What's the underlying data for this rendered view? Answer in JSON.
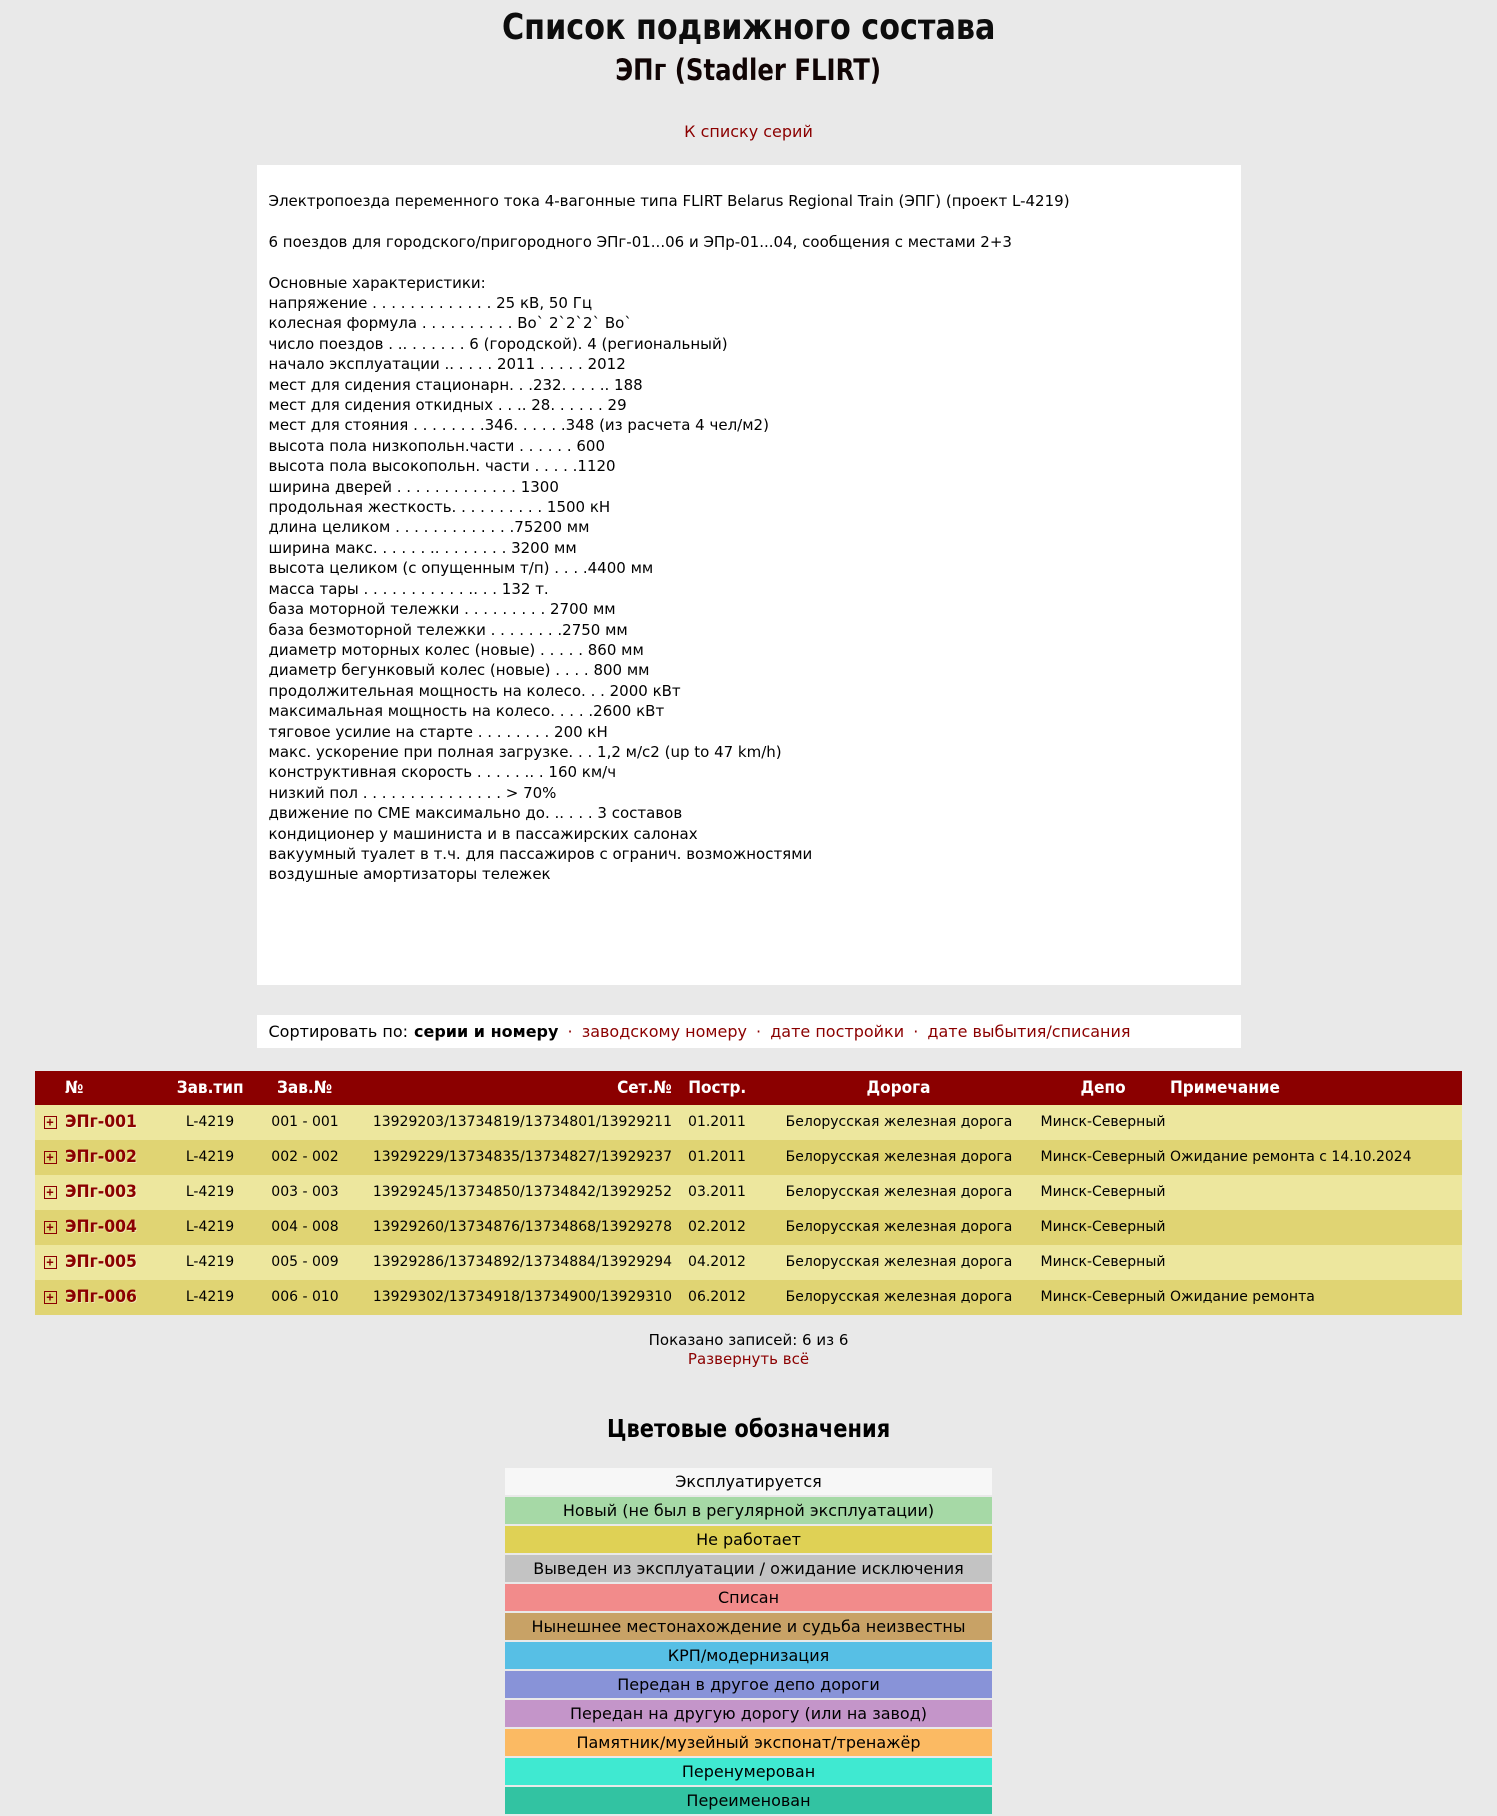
{
  "header": {
    "title": "Список подвижного состава",
    "subtitle": "ЭПг (Stadler FLIRT)",
    "back_link": "К списку серий"
  },
  "description": {
    "paragraph1": "Электропоезда переменного тока 4-вагонные типа FLIRT Belarus Regional Train (ЭПГ) (проект L-4219)",
    "paragraph2": "6 поездов для городского/пригородного ЭПг-01...06 и ЭПр-01...04, сообщения с местами 2+3",
    "spec_lines": [
      "Основные характеристики:",
      "напряжение . . . . . . . . . . . . . 25 кВ, 50 Гц",
      "колесная формула . . . . . . . . . . Во` 2`2`2` Во`",
      "число поездов . .. . . . . . . 6 (городской). 4 (региональный)",
      "начало эксплуатации .. . . . . 2011 . . . . . 2012",
      "мест для сидения стационарн. . .232. . . . .. 188",
      "мест для сидения откидных . . .. 28. . . . . . 29",
      "мест для стояния . . . . . . . .346. . . . . .348 (из расчета 4 чел/м2)",
      "высота пола низкопольн.части . . . . . . 600",
      "высота пола высокопольн. части . . . . .1120",
      "ширина дверей . . . . . . . . . . . . . 1300",
      "продольная жесткость. . . . . . . . . . 1500 кН",
      "длина целиком . . . . . . . . . . . . .75200 мм",
      "ширина макс. . . . . . .. . . . . . . . 3200 мм",
      "высота целиком (с опущенным т/п) . . . .4400 мм",
      "масса тары . . . . . . . . . . . .. . . 132 т.",
      "база моторной тележки . . . . . . . . . 2700 мм",
      "база безмоторной тележки . . . . . . . .2750 мм",
      "диаметр моторных колес (новые) . . . . . 860 мм",
      "диаметр бегунковый колес (новые) . . . . 800 мм",
      "продолжительная мощность на колесо. . . 2000 кВт",
      "максимальная мощность на колесо. . . . .2600 кВт",
      "тяговое усилие на старте . . . . . . . . 200 кН",
      "макс. ускорение при полная загрузке. . . 1,2 м/с2 (up to 47 km/h)",
      "конструктивная скорость . . . . . .. . 160 км/ч",
      "низкий пол . . . . . . . . . . . . . . . > 70%",
      "движение по СМЕ максимально до. .. . . . 3 составов",
      "кондиционер у машиниста и в пассажирских салонах",
      "вакуумный туалет в т.ч. для пассажиров с огранич. возможностями",
      "воздушные амортизаторы тележек"
    ]
  },
  "sort": {
    "label": "Сортировать по:",
    "active": "серии и номеру",
    "separator": "·",
    "options": [
      "заводскому номеру",
      "дате постройки",
      "дате выбытия/списания"
    ]
  },
  "table": {
    "columns": [
      "№",
      "Зав.тип",
      "Зав.№",
      "Сет.№",
      "Постр.",
      "Дорога",
      "Депо",
      "Примечание"
    ],
    "expand_icon": "+",
    "rows": [
      {
        "number": "ЭПг-001",
        "factory_type": "L-4219",
        "factory_number": "001 - 001",
        "network_number": "13929203/13734819/13734801/13929211",
        "built": "01.2011",
        "road": "Белорусская железная дорога",
        "depot": "Минск-Северный",
        "note": ""
      },
      {
        "number": "ЭПг-002",
        "factory_type": "L-4219",
        "factory_number": "002 - 002",
        "network_number": "13929229/13734835/13734827/13929237",
        "built": "01.2011",
        "road": "Белорусская железная дорога",
        "depot": "Минск-Северный",
        "note": "Ожидание ремонта с 14.10.2024"
      },
      {
        "number": "ЭПг-003",
        "factory_type": "L-4219",
        "factory_number": "003 - 003",
        "network_number": "13929245/13734850/13734842/13929252",
        "built": "03.2011",
        "road": "Белорусская железная дорога",
        "depot": "Минск-Северный",
        "note": ""
      },
      {
        "number": "ЭПг-004",
        "factory_type": "L-4219",
        "factory_number": "004 - 008",
        "network_number": "13929260/13734876/13734868/13929278",
        "built": "02.2012",
        "road": "Белорусская железная дорога",
        "depot": "Минск-Северный",
        "note": ""
      },
      {
        "number": "ЭПг-005",
        "factory_type": "L-4219",
        "factory_number": "005 - 009",
        "network_number": "13929286/13734892/13734884/13929294",
        "built": "04.2012",
        "road": "Белорусская железная дорога",
        "depot": "Минск-Северный",
        "note": ""
      },
      {
        "number": "ЭПг-006",
        "factory_type": "L-4219",
        "factory_number": "006 - 010",
        "network_number": "13929302/13734918/13734900/13929310",
        "built": "06.2012",
        "road": "Белорусская железная дорога",
        "depot": "Минск-Северный",
        "note": "Ожидание ремонта"
      }
    ]
  },
  "footer": {
    "shown_text": "Показано записей: 6 из 6",
    "expand_all": "Развернуть всё"
  },
  "legend": {
    "title": "Цветовые обозначения",
    "items": [
      {
        "label": "Эксплуатируется",
        "color": "#F7F7F7"
      },
      {
        "label": "Новый (не был в регулярной эксплуатации)",
        "color": "#A6D9A6"
      },
      {
        "label": "Не работает",
        "color": "#DFD155"
      },
      {
        "label": "Выведен из эксплуатации / ожидание исключения",
        "color": "#C3C3C3"
      },
      {
        "label": "Списан",
        "color": "#F28B8B"
      },
      {
        "label": "Нынешнее местонахождение и судьба неизвестны",
        "color": "#C8A266"
      },
      {
        "label": "КРП/модернизация",
        "color": "#57BFE5"
      },
      {
        "label": "Передан в другое депо дороги",
        "color": "#8893D8"
      },
      {
        "label": "Передан на другую дорогу (или на завод)",
        "color": "#C495C9"
      },
      {
        "label": "Памятник/музейный экспонат/тренажёр",
        "color": "#FBBA63"
      },
      {
        "label": "Перенумерован",
        "color": "#3FE9D1"
      },
      {
        "label": "Переименован",
        "color": "#32C3A2"
      }
    ]
  },
  "colors": {
    "accent_dark_red": "#8B0000",
    "table_header_bg": "#8B0000",
    "row_light": "#EDE79E",
    "row_dark": "#E0D473",
    "page_bg": "#E9E9E9"
  }
}
